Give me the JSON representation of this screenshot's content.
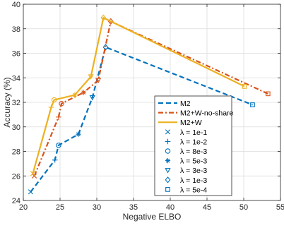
{
  "chart_data": {
    "type": "line",
    "title": "",
    "xlabel": "Negative ELBO",
    "ylabel": "Accuracy (%)",
    "xlim": [
      20,
      55
    ],
    "ylim": [
      24,
      40
    ],
    "x_ticks": [
      20,
      25,
      30,
      35,
      40,
      45,
      50,
      55
    ],
    "y_ticks": [
      24,
      26,
      28,
      30,
      32,
      34,
      36,
      38,
      40
    ],
    "grid": true,
    "legend_position": "lower-right",
    "series": [
      {
        "name": "M2",
        "color": "#0072BD",
        "line_style": "dashed",
        "points": [
          {
            "x": 21.0,
            "y": 24.7,
            "marker": "x"
          },
          {
            "x": 24.3,
            "y": 27.3,
            "marker": "+"
          },
          {
            "x": 24.8,
            "y": 28.5,
            "marker": "o"
          },
          {
            "x": 27.5,
            "y": 29.4,
            "marker": "*"
          },
          {
            "x": 29.4,
            "y": 32.4,
            "marker": "v"
          },
          {
            "x": 31.2,
            "y": 36.5,
            "marker": "d"
          },
          {
            "x": 51.2,
            "y": 31.8,
            "marker": "s"
          }
        ]
      },
      {
        "name": "M2+W-no-share",
        "color": "#D95319",
        "line_style": "dashdot",
        "points": [
          {
            "x": 21.5,
            "y": 26.0,
            "marker": "x"
          },
          {
            "x": 24.8,
            "y": 30.8,
            "marker": "+"
          },
          {
            "x": 25.2,
            "y": 31.9,
            "marker": "o"
          },
          {
            "x": 28.2,
            "y": 32.8,
            "marker": "*"
          },
          {
            "x": 30.2,
            "y": 33.8,
            "marker": "v"
          },
          {
            "x": 31.9,
            "y": 38.6,
            "marker": "d"
          },
          {
            "x": 53.3,
            "y": 32.7,
            "marker": "s"
          }
        ]
      },
      {
        "name": "M2+W",
        "color": "#EDB120",
        "line_style": "solid",
        "points": [
          {
            "x": 21.3,
            "y": 26.2,
            "marker": "x"
          },
          {
            "x": 23.8,
            "y": 31.6,
            "marker": "+"
          },
          {
            "x": 24.2,
            "y": 32.2,
            "marker": "o"
          },
          {
            "x": 27.0,
            "y": 32.6,
            "marker": "*"
          },
          {
            "x": 29.2,
            "y": 34.1,
            "marker": "v"
          },
          {
            "x": 30.9,
            "y": 38.9,
            "marker": "d"
          },
          {
            "x": 50.1,
            "y": 33.3,
            "marker": "s"
          }
        ]
      }
    ],
    "marker_legend": [
      {
        "label": "λ = 1e-1",
        "marker": "x"
      },
      {
        "label": "λ = 1e-2",
        "marker": "+"
      },
      {
        "label": "λ = 8e-3",
        "marker": "o"
      },
      {
        "label": "λ = 5e-3",
        "marker": "*"
      },
      {
        "label": "λ = 3e-3",
        "marker": "v"
      },
      {
        "label": "λ = 1e-3",
        "marker": "d"
      },
      {
        "label": "λ = 5e-4",
        "marker": "s"
      }
    ],
    "marker_legend_color": "#0072BD"
  }
}
